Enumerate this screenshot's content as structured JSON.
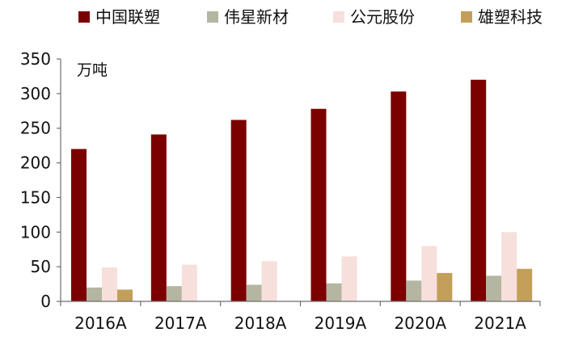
{
  "chart_data": {
    "type": "bar",
    "unit_label": "万吨",
    "categories": [
      "2016A",
      "2017A",
      "2018A",
      "2019A",
      "2020A",
      "2021A"
    ],
    "series": [
      {
        "name": "中国联塑",
        "color": "#7b0000",
        "values": [
          220,
          241,
          262,
          278,
          303,
          320
        ]
      },
      {
        "name": "伟星新材",
        "color": "#b5b6a2",
        "values": [
          20,
          22,
          24,
          26,
          30,
          37
        ]
      },
      {
        "name": "公元股份",
        "color": "#f7dfdc",
        "values": [
          49,
          53,
          58,
          65,
          80,
          100
        ]
      },
      {
        "name": "雄塑科技",
        "color": "#c49f59",
        "values": [
          17,
          null,
          null,
          null,
          41,
          47
        ]
      }
    ],
    "y_ticks": [
      0,
      50,
      100,
      150,
      200,
      250,
      300,
      350
    ],
    "ylim": [
      0,
      350
    ],
    "grid": false,
    "legend_position": "top"
  }
}
